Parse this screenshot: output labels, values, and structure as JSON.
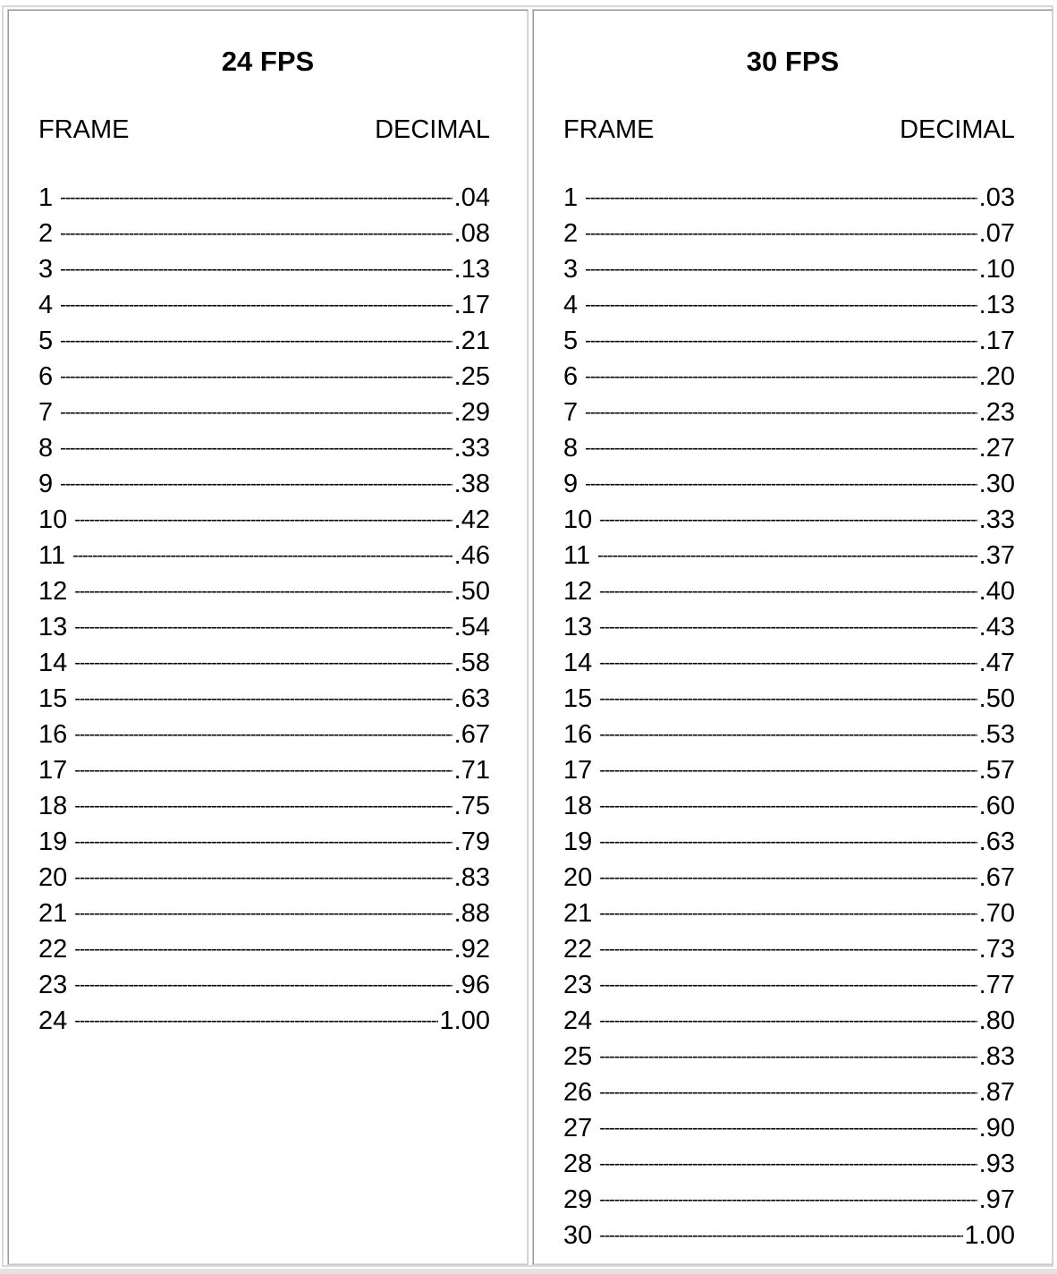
{
  "tables": [
    {
      "title": "24 FPS",
      "frame_header": "FRAME",
      "decimal_header": "DECIMAL",
      "rows": [
        {
          "frame": "1",
          "decimal": ".04"
        },
        {
          "frame": "2",
          "decimal": ".08"
        },
        {
          "frame": "3",
          "decimal": ".13"
        },
        {
          "frame": "4",
          "decimal": ".17"
        },
        {
          "frame": "5",
          "decimal": ".21"
        },
        {
          "frame": "6",
          "decimal": ".25"
        },
        {
          "frame": "7",
          "decimal": ".29"
        },
        {
          "frame": "8",
          "decimal": ".33"
        },
        {
          "frame": "9",
          "decimal": ".38"
        },
        {
          "frame": "10",
          "decimal": ".42"
        },
        {
          "frame": "11",
          "decimal": ".46"
        },
        {
          "frame": "12",
          "decimal": ".50"
        },
        {
          "frame": "13",
          "decimal": ".54"
        },
        {
          "frame": "14",
          "decimal": ".58"
        },
        {
          "frame": "15",
          "decimal": ".63"
        },
        {
          "frame": "16",
          "decimal": ".67"
        },
        {
          "frame": "17",
          "decimal": ".71"
        },
        {
          "frame": "18",
          "decimal": ".75"
        },
        {
          "frame": "19",
          "decimal": ".79"
        },
        {
          "frame": "20",
          "decimal": ".83"
        },
        {
          "frame": "21",
          "decimal": ".88"
        },
        {
          "frame": "22",
          "decimal": ".92"
        },
        {
          "frame": "23",
          "decimal": ".96"
        },
        {
          "frame": "24",
          "decimal": "1.00"
        }
      ]
    },
    {
      "title": "30 FPS",
      "frame_header": "FRAME",
      "decimal_header": "DECIMAL",
      "rows": [
        {
          "frame": "1",
          "decimal": ".03"
        },
        {
          "frame": "2",
          "decimal": ".07"
        },
        {
          "frame": "3",
          "decimal": ".10"
        },
        {
          "frame": "4",
          "decimal": ".13"
        },
        {
          "frame": "5",
          "decimal": ".17"
        },
        {
          "frame": "6",
          "decimal": ".20"
        },
        {
          "frame": "7",
          "decimal": ".23"
        },
        {
          "frame": "8",
          "decimal": ".27"
        },
        {
          "frame": "9",
          "decimal": ".30"
        },
        {
          "frame": "10",
          "decimal": ".33"
        },
        {
          "frame": "11",
          "decimal": ".37"
        },
        {
          "frame": "12",
          "decimal": ".40"
        },
        {
          "frame": "13",
          "decimal": ".43"
        },
        {
          "frame": "14",
          "decimal": ".47"
        },
        {
          "frame": "15",
          "decimal": ".50"
        },
        {
          "frame": "16",
          "decimal": ".53"
        },
        {
          "frame": "17",
          "decimal": ".57"
        },
        {
          "frame": "18",
          "decimal": ".60"
        },
        {
          "frame": "19",
          "decimal": ".63"
        },
        {
          "frame": "20",
          "decimal": ".67"
        },
        {
          "frame": "21",
          "decimal": ".70"
        },
        {
          "frame": "22",
          "decimal": ".73"
        },
        {
          "frame": "23",
          "decimal": ".77"
        },
        {
          "frame": "24",
          "decimal": ".80"
        },
        {
          "frame": "25",
          "decimal": ".83"
        },
        {
          "frame": "26",
          "decimal": ".87"
        },
        {
          "frame": "27",
          "decimal": ".90"
        },
        {
          "frame": "28",
          "decimal": ".93"
        },
        {
          "frame": "29",
          "decimal": ".97"
        },
        {
          "frame": "30",
          "decimal": "1.00"
        }
      ]
    }
  ]
}
